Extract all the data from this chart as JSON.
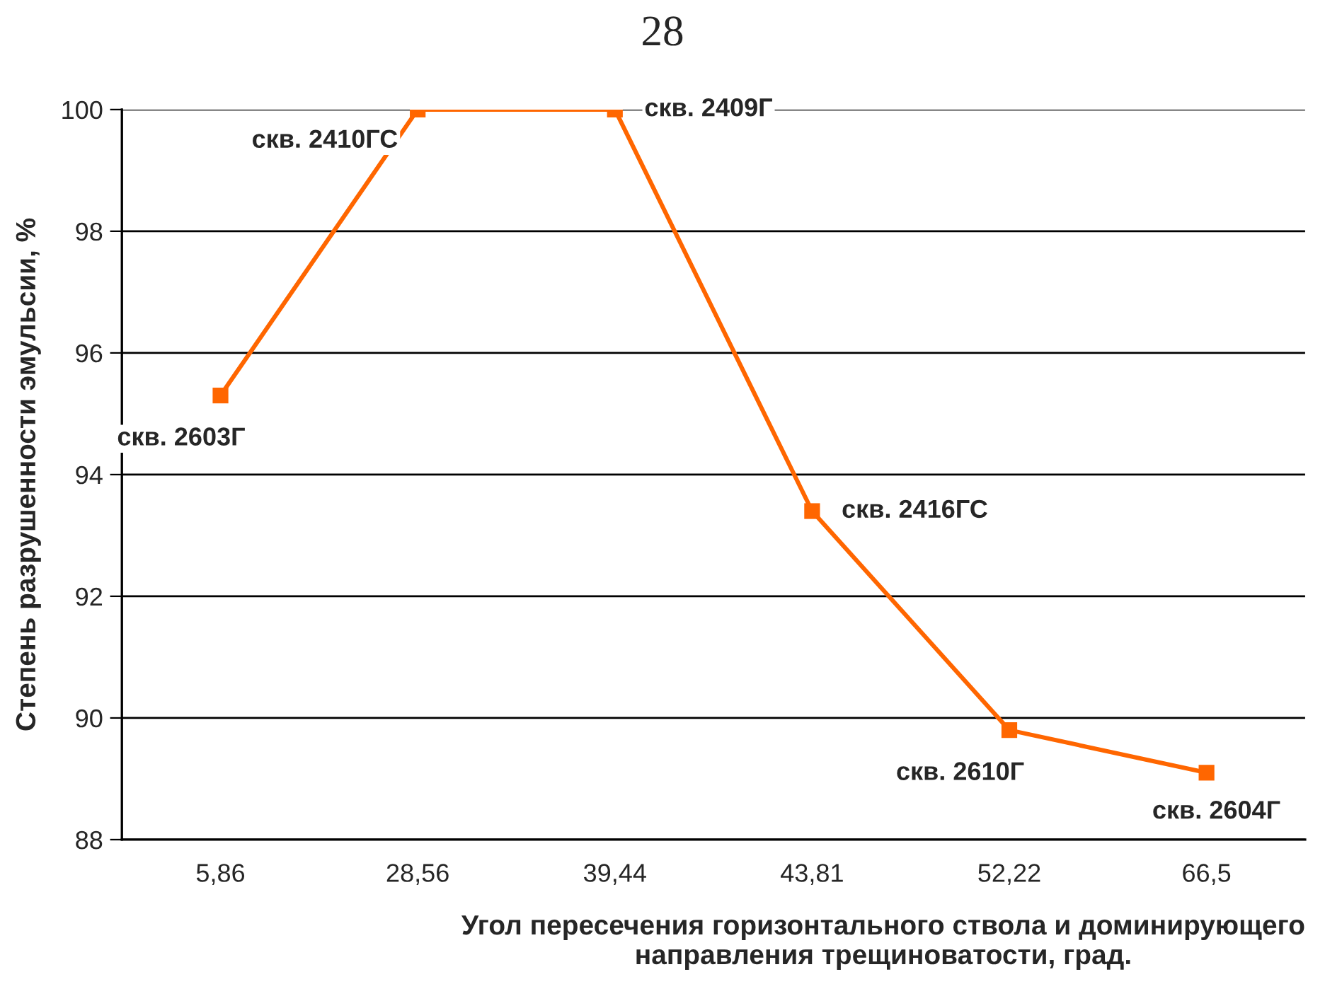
{
  "chart_data": {
    "type": "line",
    "xlabel": "Угол пересечения горизонтального ствола и доминирующего\nнаправления трещиноватости, град.",
    "ylabel": "Степень разрушенности эмульсии, %",
    "categories": [
      "5,86",
      "28,56",
      "39,44",
      "43,81",
      "52,22",
      "66,5"
    ],
    "series": [
      {
        "color": "#ff6600",
        "values": [
          95.3,
          100,
          100,
          93.4,
          89.8,
          89.1
        ]
      }
    ],
    "ylim": [
      88,
      100
    ],
    "yticks": [
      88,
      90,
      92,
      94,
      96,
      98,
      100
    ],
    "grid": "y",
    "marker": "square",
    "line_style": "solid",
    "annotations": [
      "28",
      {
        "text": "скв. 2603Г",
        "x": "5,86",
        "y": 95.3
      },
      {
        "text": "скв. 2410ГС",
        "x": "28,56",
        "y": 100
      },
      {
        "text": "скв. 2409Г",
        "x": "39,44",
        "y": 100
      },
      {
        "text": "скв. 2416ГС",
        "x": "43,81",
        "y": 93.4
      },
      {
        "text": "скв. 2610Г",
        "x": "52,22",
        "y": 89.8
      },
      {
        "text": "скв. 2604Г",
        "x": "66,5",
        "y": 89.1
      }
    ]
  }
}
